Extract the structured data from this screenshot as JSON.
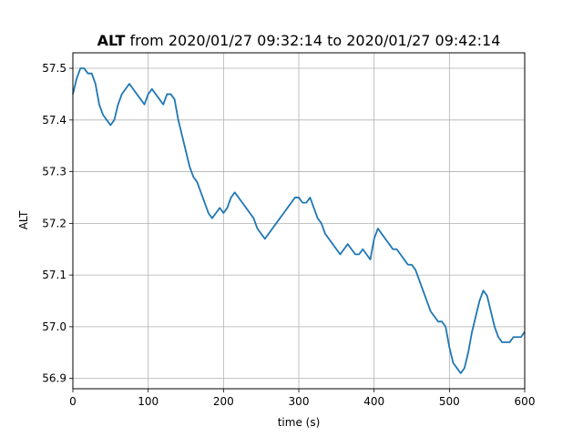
{
  "chart_data": {
    "type": "line",
    "title_var": "ALT",
    "title_rest": " from 2020/01/27 09:32:14 to 2020/01/27 09:42:14",
    "xlabel": "time (s)",
    "ylabel": "ALT",
    "xlim": [
      0,
      600
    ],
    "ylim": [
      56.88,
      57.53
    ],
    "grid": true,
    "line_color": "#1f77b4",
    "xticks": [
      0,
      100,
      200,
      300,
      400,
      500,
      600
    ],
    "xtick_labels": [
      "0",
      "100",
      "200",
      "300",
      "400",
      "500",
      "600"
    ],
    "yticks": [
      56.9,
      57.0,
      57.1,
      57.2,
      57.3,
      57.4,
      57.5
    ],
    "ytick_labels": [
      "56.9",
      "57.0",
      "57.1",
      "57.2",
      "57.3",
      "57.4",
      "57.5"
    ],
    "series": [
      {
        "x": [
          0,
          5,
          10,
          15,
          20,
          25,
          30,
          35,
          40,
          45,
          50,
          55,
          60,
          65,
          70,
          75,
          80,
          85,
          90,
          95,
          100,
          105,
          110,
          115,
          120,
          125,
          130,
          135,
          140,
          145,
          150,
          155,
          160,
          165,
          170,
          175,
          180,
          185,
          190,
          195,
          200,
          205,
          210,
          215,
          220,
          225,
          230,
          235,
          240,
          245,
          250,
          255,
          260,
          265,
          270,
          275,
          280,
          285,
          290,
          295,
          300,
          305,
          310,
          315,
          320,
          325,
          330,
          335,
          340,
          345,
          350,
          355,
          360,
          365,
          370,
          375,
          380,
          385,
          390,
          395,
          400,
          405,
          410,
          415,
          420,
          425,
          430,
          435,
          440,
          445,
          450,
          455,
          460,
          465,
          470,
          475,
          480,
          485,
          490,
          495,
          500,
          505,
          510,
          515,
          520,
          525,
          530,
          535,
          540,
          545,
          550,
          555,
          560,
          565,
          570,
          575,
          580,
          585,
          590,
          595,
          600
        ],
        "y": [
          57.45,
          57.48,
          57.5,
          57.5,
          57.49,
          57.49,
          57.47,
          57.43,
          57.41,
          57.4,
          57.39,
          57.4,
          57.43,
          57.45,
          57.46,
          57.47,
          57.46,
          57.45,
          57.44,
          57.43,
          57.45,
          57.46,
          57.45,
          57.44,
          57.43,
          57.45,
          57.45,
          57.44,
          57.4,
          57.37,
          57.34,
          57.31,
          57.29,
          57.28,
          57.26,
          57.24,
          57.22,
          57.21,
          57.22,
          57.23,
          57.22,
          57.23,
          57.25,
          57.26,
          57.25,
          57.24,
          57.23,
          57.22,
          57.21,
          57.19,
          57.18,
          57.17,
          57.18,
          57.19,
          57.2,
          57.21,
          57.22,
          57.23,
          57.24,
          57.25,
          57.25,
          57.24,
          57.24,
          57.25,
          57.23,
          57.21,
          57.2,
          57.18,
          57.17,
          57.16,
          57.15,
          57.14,
          57.15,
          57.16,
          57.15,
          57.14,
          57.14,
          57.15,
          57.14,
          57.13,
          57.17,
          57.19,
          57.18,
          57.17,
          57.16,
          57.15,
          57.15,
          57.14,
          57.13,
          57.12,
          57.12,
          57.11,
          57.09,
          57.07,
          57.05,
          57.03,
          57.02,
          57.01,
          57.01,
          57.0,
          56.96,
          56.93,
          56.92,
          56.91,
          56.92,
          56.95,
          56.99,
          57.02,
          57.05,
          57.07,
          57.06,
          57.03,
          57.0,
          56.98,
          56.97,
          56.97,
          56.97,
          56.98,
          56.98,
          56.98,
          56.99
        ]
      }
    ]
  }
}
